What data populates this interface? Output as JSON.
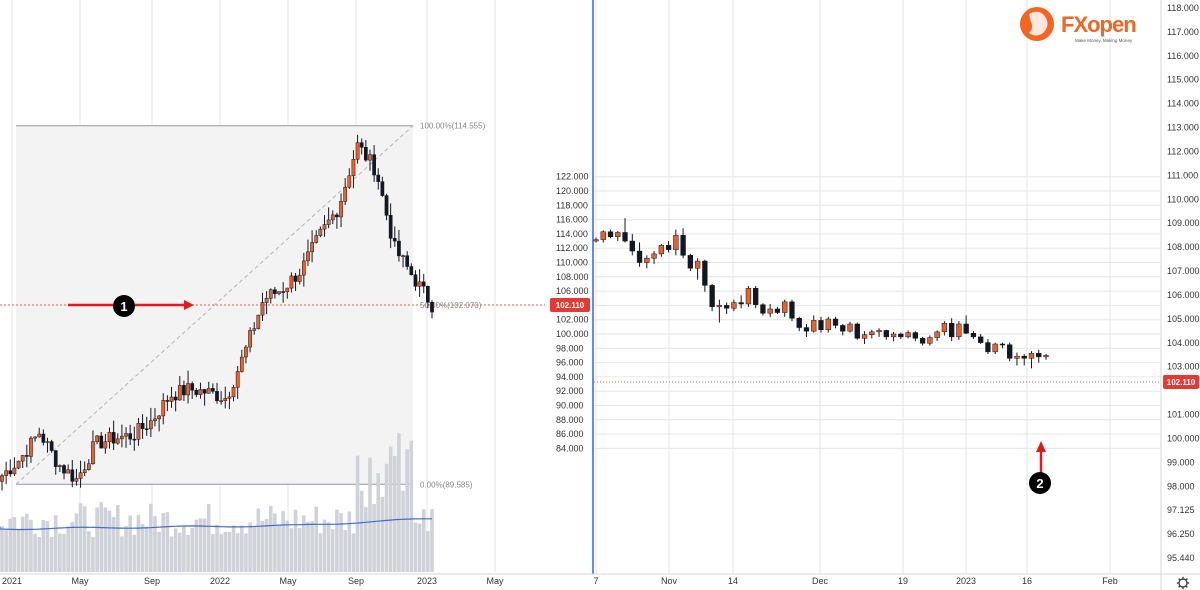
{
  "colors": {
    "up": "#e8622c",
    "down": "#131722",
    "grid": "#e6e6e6",
    "price_line": "#e45b4a",
    "badge": "#e53935",
    "volume": "#cfd2d8",
    "ma_line": "#3f6bd6",
    "fib_line": "#9598a1",
    "fib_fill": "#f3f3f3",
    "arrow": "#e01b1b",
    "logo_orange": "#f26522",
    "divider": "#2962ff"
  },
  "logo": {
    "text": "FXopen",
    "tagline": "Make Money. Making Money"
  },
  "chart_data": [
    {
      "type": "candlestick",
      "name": "left",
      "x_tick_labels": [
        "2021",
        "May",
        "Sep",
        "2022",
        "May",
        "Sep",
        "2023",
        "May"
      ],
      "fib_levels": [
        {
          "label": "100.00%(114.555)",
          "value": 114.555
        },
        {
          "label": "50.00%(102.070)",
          "value": 102.07
        },
        {
          "label": "0.00%(89.585)",
          "value": 89.585
        }
      ],
      "ohlc_anchors": [
        [
          "2021-01",
          90.2
        ],
        [
          "2021-03",
          91.4
        ],
        [
          "2021-04",
          93.2
        ],
        [
          "2021-05",
          91.0
        ],
        [
          "2021-06",
          89.9
        ],
        [
          "2021-07",
          92.4
        ],
        [
          "2021-08",
          92.8
        ],
        [
          "2021-09",
          93.0
        ],
        [
          "2021-10",
          94.0
        ],
        [
          "2021-11",
          95.8
        ],
        [
          "2021-12",
          96.2
        ],
        [
          "2022-01",
          96.0
        ],
        [
          "2022-02",
          95.6
        ],
        [
          "2022-03",
          98.8
        ],
        [
          "2022-04",
          102.5
        ],
        [
          "2022-05",
          103.2
        ],
        [
          "2022-06",
          104.5
        ],
        [
          "2022-07",
          106.9
        ],
        [
          "2022-08",
          108.9
        ],
        [
          "2022-09",
          113.2
        ],
        [
          "2022-10",
          111.5
        ],
        [
          "2022-11",
          106.0
        ],
        [
          "2022-12",
          104.0
        ],
        [
          "2023-01",
          102.1
        ]
      ],
      "price_line": 102.11
    },
    {
      "type": "candlestick",
      "name": "right",
      "y_ticks": [
        "122.000",
        "120.000",
        "118.000",
        "116.000",
        "114.000",
        "112.000",
        "110.000",
        "108.000",
        "106.000",
        "104.000",
        "102.000",
        "100.000",
        "98.000",
        "96.000",
        "94.000",
        "92.000",
        "90.000",
        "88.000",
        "86.000",
        "84.000"
      ],
      "y_ticks_right": [
        "118.000",
        "117.000",
        "116.000",
        "115.000",
        "114.000",
        "113.000",
        "112.000",
        "111.000",
        "110.000",
        "109.000",
        "108.000",
        "107.000",
        "106.000",
        "105.000",
        "104.000",
        "103.000",
        "102.110",
        "101.000",
        "100.000",
        "99.000",
        "98.000",
        "97.125",
        "96.250",
        "95.440"
      ],
      "x_tick_labels": [
        "7",
        "Nov",
        "14",
        "Dec",
        "19",
        "2023",
        "16",
        "Feb"
      ],
      "ohlc": [
        [
          113.0,
          113.5,
          112.8,
          113.2
        ],
        [
          113.2,
          114.5,
          112.8,
          114.3
        ],
        [
          114.3,
          114.6,
          113.4,
          113.6
        ],
        [
          113.6,
          114.4,
          113.0,
          114.2
        ],
        [
          114.2,
          116.2,
          112.8,
          113.0
        ],
        [
          113.0,
          114.0,
          111.0,
          111.6
        ],
        [
          111.6,
          112.8,
          109.4,
          110.0
        ],
        [
          110.0,
          111.0,
          109.2,
          110.6
        ],
        [
          110.6,
          111.6,
          109.8,
          111.2
        ],
        [
          111.2,
          112.6,
          110.8,
          112.4
        ],
        [
          112.4,
          113.0,
          111.4,
          111.8
        ],
        [
          111.8,
          114.6,
          111.0,
          113.8
        ],
        [
          113.8,
          114.8,
          110.6,
          111.0
        ],
        [
          111.0,
          111.2,
          108.8,
          109.2
        ],
        [
          109.2,
          110.6,
          107.6,
          110.2
        ],
        [
          110.2,
          110.4,
          105.9,
          106.8
        ],
        [
          106.8,
          107.0,
          103.2,
          103.8
        ],
        [
          103.8,
          104.8,
          101.6,
          104.0
        ],
        [
          104.0,
          104.4,
          102.8,
          103.6
        ],
        [
          103.6,
          104.8,
          103.2,
          104.4
        ],
        [
          104.4,
          105.4,
          103.6,
          104.2
        ],
        [
          104.2,
          106.7,
          103.8,
          106.4
        ],
        [
          106.4,
          106.7,
          103.6,
          104.1
        ],
        [
          104.1,
          104.3,
          102.6,
          102.9
        ],
        [
          102.9,
          104.2,
          102.4,
          103.5
        ],
        [
          103.5,
          103.8,
          102.8,
          103.0
        ],
        [
          103.0,
          104.8,
          102.4,
          104.5
        ],
        [
          104.5,
          104.8,
          101.8,
          102.2
        ],
        [
          102.2,
          102.4,
          100.4,
          100.9
        ],
        [
          100.9,
          101.4,
          99.6,
          100.4
        ],
        [
          100.4,
          102.6,
          100.2,
          101.9
        ],
        [
          101.9,
          102.4,
          100.2,
          100.6
        ],
        [
          100.6,
          102.4,
          100.2,
          102.1
        ],
        [
          102.1,
          102.4,
          100.8,
          101.2
        ],
        [
          101.2,
          101.4,
          99.8,
          100.4
        ],
        [
          100.4,
          101.7,
          100.2,
          101.4
        ],
        [
          101.4,
          101.6,
          99.2,
          99.4
        ],
        [
          99.4,
          100.4,
          98.6,
          99.9
        ],
        [
          99.9,
          100.6,
          99.4,
          100.3
        ],
        [
          100.3,
          100.8,
          99.6,
          100.5
        ],
        [
          100.5,
          100.6,
          99.2,
          99.6
        ],
        [
          99.6,
          100.3,
          99.0,
          100.0
        ],
        [
          100.0,
          100.2,
          99.3,
          99.6
        ],
        [
          99.6,
          100.5,
          99.4,
          100.2
        ],
        [
          100.2,
          100.4,
          99.0,
          99.4
        ],
        [
          99.4,
          99.6,
          98.4,
          98.7
        ],
        [
          98.7,
          99.8,
          98.4,
          99.5
        ],
        [
          99.5,
          100.5,
          99.0,
          100.3
        ],
        [
          100.3,
          101.8,
          99.8,
          101.5
        ],
        [
          101.5,
          102.2,
          99.0,
          99.6
        ],
        [
          99.6,
          101.8,
          99.2,
          101.4
        ],
        [
          101.4,
          102.6,
          100.0,
          100.1
        ],
        [
          100.1,
          100.4,
          99.3,
          99.6
        ],
        [
          99.6,
          100.0,
          98.6,
          98.8
        ],
        [
          98.8,
          99.3,
          97.2,
          97.5
        ],
        [
          97.5,
          98.8,
          97.2,
          98.6
        ],
        [
          98.6,
          98.8,
          98.0,
          98.5
        ],
        [
          98.5,
          98.8,
          96.2,
          96.6
        ],
        [
          96.6,
          97.4,
          95.6,
          96.9
        ],
        [
          96.9,
          97.2,
          95.6,
          96.6
        ],
        [
          96.6,
          97.6,
          95.2,
          97.3
        ],
        [
          97.3,
          97.8,
          96.0,
          96.8
        ],
        [
          96.8,
          97.2,
          96.4,
          97.0
        ]
      ],
      "price_line": 102.11,
      "last_price_label": "102.110"
    }
  ],
  "annotations": [
    {
      "label": "1"
    },
    {
      "label": "2"
    }
  ]
}
